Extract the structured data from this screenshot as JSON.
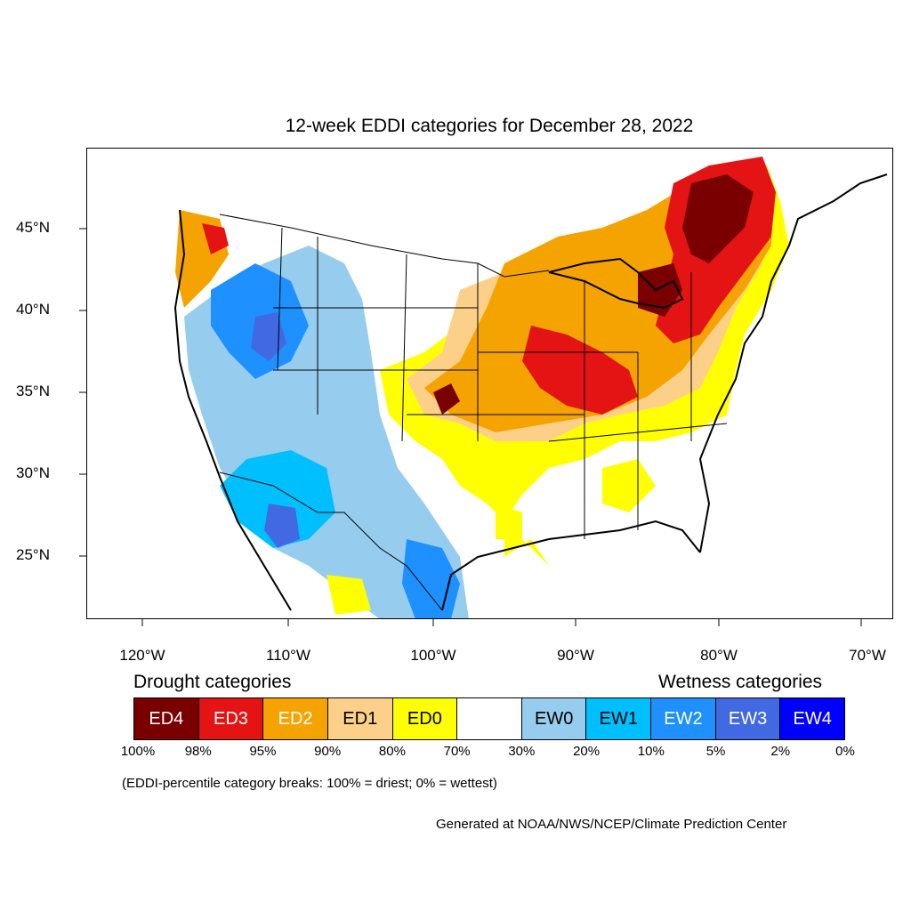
{
  "title": "12-week EDDI categories for December 28, 2022",
  "map": {
    "lat_labels": [
      "45°N",
      "40°N",
      "35°N",
      "30°N",
      "25°N"
    ],
    "lon_labels": [
      "120°W",
      "110°W",
      "100°W",
      "90°W",
      "80°W",
      "70°W"
    ],
    "colors": {
      "ED4": "#7a0000",
      "ED3": "#e41414",
      "ED2": "#f5a300",
      "ED1": "#fdd08a",
      "ED0": "#ffff00",
      "neutral": "#ffffff",
      "EW0": "#96cdee",
      "EW1": "#00bfff",
      "EW2": "#1e90ff",
      "EW3": "#4169e1",
      "EW4": "#0000ff"
    }
  },
  "legend": {
    "drought_heading": "Drought categories",
    "wetness_heading": "Wetness categories",
    "categories": [
      {
        "label": "ED4",
        "color": "#7a0000",
        "text_color": "#ffffff"
      },
      {
        "label": "ED3",
        "color": "#e41414",
        "text_color": "#ffffff"
      },
      {
        "label": "ED2",
        "color": "#f5a300",
        "text_color": "#ffffff"
      },
      {
        "label": "ED1",
        "color": "#fdd08a",
        "text_color": "#000000"
      },
      {
        "label": "ED0",
        "color": "#ffff00",
        "text_color": "#000000"
      },
      {
        "label": "",
        "color": "#ffffff",
        "text_color": "#000000"
      },
      {
        "label": "EW0",
        "color": "#96cdee",
        "text_color": "#000000"
      },
      {
        "label": "EW1",
        "color": "#00bfff",
        "text_color": "#000000"
      },
      {
        "label": "EW2",
        "color": "#1e90ff",
        "text_color": "#ffffff"
      },
      {
        "label": "EW3",
        "color": "#4169e1",
        "text_color": "#ffffff"
      },
      {
        "label": "EW4",
        "color": "#0000ff",
        "text_color": "#ffffff"
      }
    ],
    "percentiles": [
      "100%",
      "98%",
      "95%",
      "90%",
      "80%",
      "70%",
      "30%",
      "20%",
      "10%",
      "5%",
      "2%",
      "0%"
    ]
  },
  "note": "(EDDI-percentile category breaks: 100% = driest; 0% = wettest)",
  "credit": "Generated at NOAA/NWS/NCEP/Climate Prediction Center"
}
